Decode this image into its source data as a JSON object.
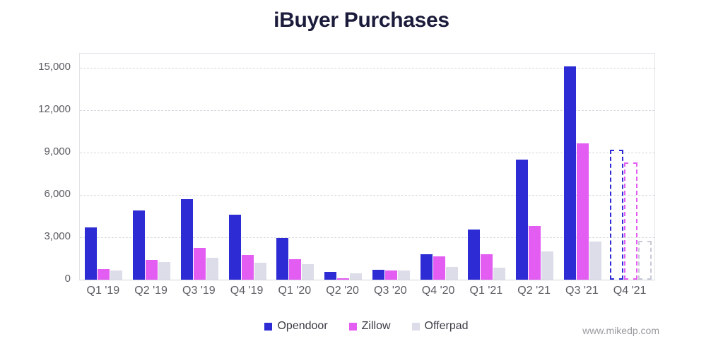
{
  "title": "iBuyer Purchases",
  "footer": "www.mikedp.com",
  "colors": {
    "title_text": "#1B1B3B",
    "axis_text": "#5B5C63",
    "gridline": "#D8D9DE",
    "plot_border": "#E3E4E8",
    "legend_text": "#3A3B44",
    "footer_text": "#9A9B9F",
    "background": "#FFFFFF"
  },
  "chart_data": {
    "type": "bar",
    "title": "iBuyer Purchases",
    "xlabel": "",
    "ylabel": "",
    "categories": [
      "Q1 '19",
      "Q2 '19",
      "Q3 '19",
      "Q4 '19",
      "Q1 '20",
      "Q2 '20",
      "Q3 '20",
      "Q4 '20",
      "Q1 '21",
      "Q2 '21",
      "Q3 '21",
      "Q4 '21"
    ],
    "series": [
      {
        "name": "Opendoor",
        "color": "#2D2BD3",
        "projected_border_color": "#2D2BD3",
        "values": [
          3700,
          4900,
          5700,
          4600,
          2950,
          550,
          700,
          1800,
          3550,
          8500,
          15100,
          9200
        ]
      },
      {
        "name": "Zillow",
        "color": "#E35DF2",
        "projected_border_color": "#E35DF2",
        "values": [
          750,
          1400,
          2250,
          1750,
          1450,
          100,
          650,
          1650,
          1800,
          3800,
          9650,
          8300
        ]
      },
      {
        "name": "Offerpad",
        "color": "#DCDDE8",
        "projected_border_color": "#C7C9D6",
        "values": [
          650,
          1250,
          1550,
          1200,
          1100,
          450,
          650,
          900,
          850,
          2000,
          2700,
          2750
        ]
      }
    ],
    "projected_categories": [
      "Q4 '21"
    ],
    "projected_note": "Q4 '21 bars drawn as dashed outlines (projection)",
    "ylim": [
      0,
      16000
    ],
    "yticks": [
      0,
      3000,
      6000,
      9000,
      12000,
      15000
    ],
    "ytick_labels": [
      "0",
      "3,000",
      "6,000",
      "9,000",
      "12,000",
      "15,000"
    ],
    "grid": "horizontal-dashed",
    "legend_position": "bottom"
  }
}
